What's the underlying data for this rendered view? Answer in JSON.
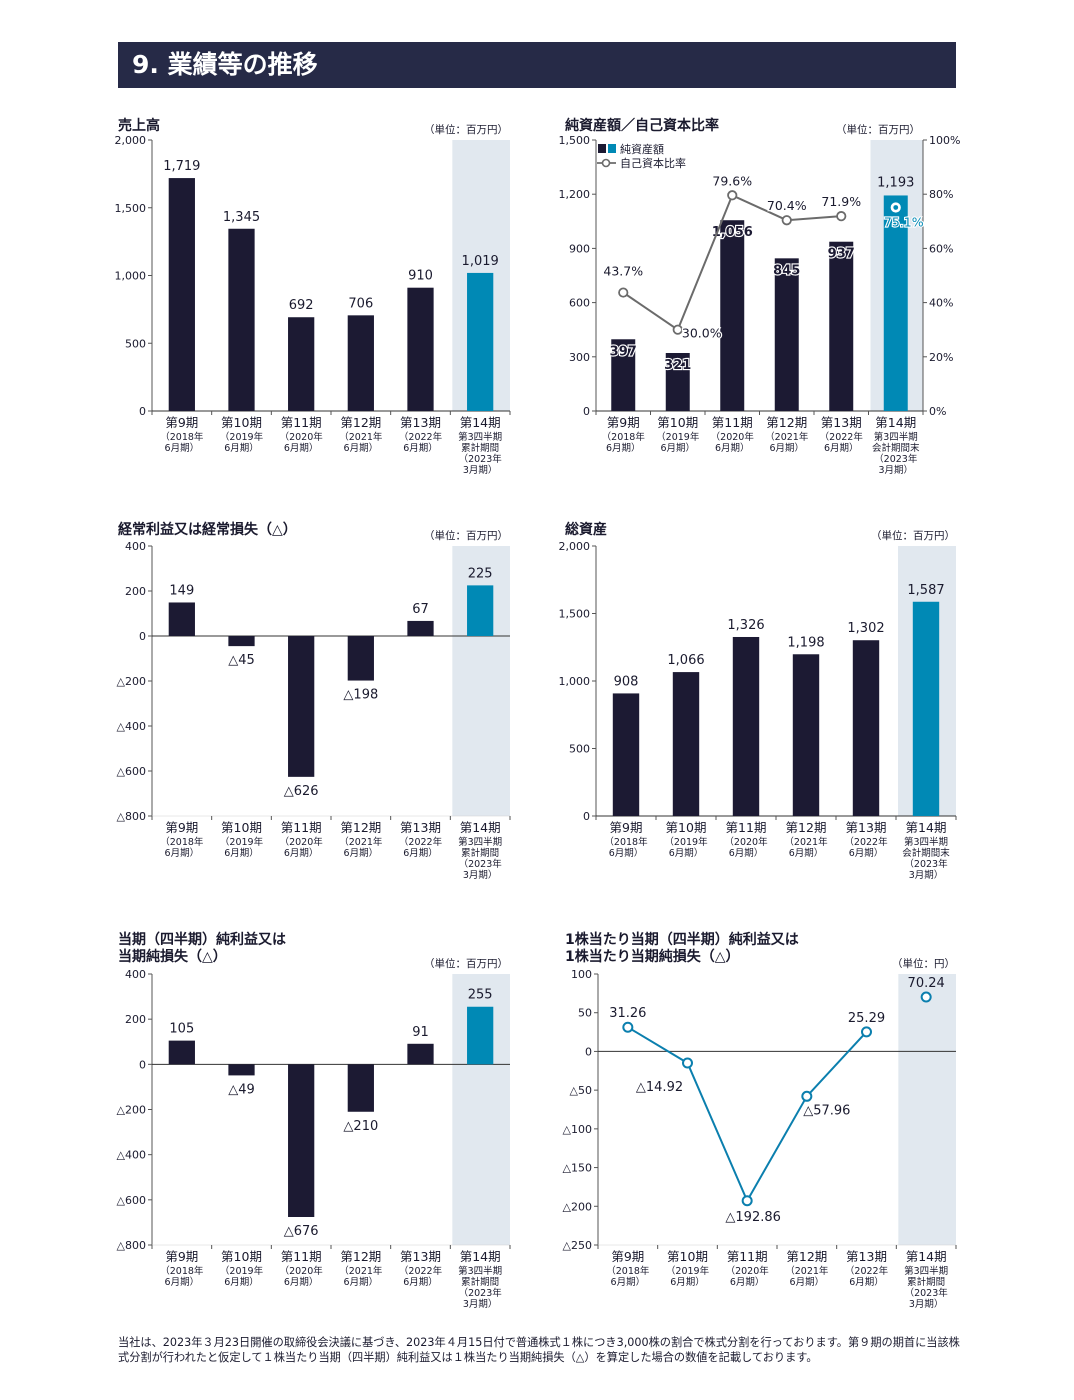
{
  "header": {
    "title": "9. 業績等の推移"
  },
  "colors": {
    "dark_bar": "#1c1a33",
    "accent_bar": "#0089b5",
    "highlight_band": "#e1e8ef",
    "line": "#6b6b6b",
    "eps_line": "#0b7fae",
    "axis": "#555555"
  },
  "chart_data": [
    {
      "id": "sales",
      "type": "bar",
      "title": "売上高",
      "unit": "（単位：百万円）",
      "categories": [
        "第9期",
        "第10期",
        "第11期",
        "第12期",
        "第13期",
        "第14期"
      ],
      "subtitles": [
        [
          "（2018年",
          "6月期）"
        ],
        [
          "（2019年",
          "6月期）"
        ],
        [
          "（2020年",
          "6月期）"
        ],
        [
          "（2021年",
          "6月期）"
        ],
        [
          "（2022年",
          "6月期）"
        ],
        [
          "第3四半期",
          "累計期間",
          "（2023年",
          "3月期）"
        ]
      ],
      "values": [
        1719,
        1345,
        692,
        706,
        910,
        1019
      ],
      "value_labels": [
        "1,719",
        "1,345",
        "692",
        "706",
        "910",
        "1,019"
      ],
      "ylim": [
        0,
        2000
      ],
      "yticks": [
        0,
        500,
        1000,
        1500,
        2000
      ],
      "ytick_labels": [
        "0",
        "500",
        "1,000",
        "1,500",
        "2,000"
      ],
      "highlight_index": 5
    },
    {
      "id": "net-assets",
      "type": "bar+line",
      "title": "純資産額／自己資本比率",
      "unit": "（単位：百万円）",
      "categories": [
        "第9期",
        "第10期",
        "第11期",
        "第12期",
        "第13期",
        "第14期"
      ],
      "subtitles": [
        [
          "（2018年",
          "6月期）"
        ],
        [
          "（2019年",
          "6月期）"
        ],
        [
          "（2020年",
          "6月期）"
        ],
        [
          "（2021年",
          "6月期）"
        ],
        [
          "（2022年",
          "6月期）"
        ],
        [
          "第3四半期",
          "会計期間末",
          "（2023年",
          "3月期）"
        ]
      ],
      "values": [
        397,
        321,
        1056,
        845,
        937,
        1193
      ],
      "value_labels": [
        "397",
        "321",
        "1,056",
        "845",
        "937",
        "1,193"
      ],
      "ylim": [
        0,
        1500
      ],
      "yticks": [
        0,
        300,
        600,
        900,
        1200,
        1500
      ],
      "ytick_labels": [
        "0",
        "300",
        "600",
        "900",
        "1,200",
        "1,500"
      ],
      "ratio_values": [
        43.7,
        30.0,
        79.6,
        70.4,
        71.9,
        75.1
      ],
      "ratio_labels": [
        "43.7%",
        "30.0%",
        "79.6%",
        "70.4%",
        "71.9%",
        "75.1%"
      ],
      "y2lim": [
        0,
        100
      ],
      "y2ticks": [
        0,
        20,
        40,
        60,
        80,
        100
      ],
      "y2tick_labels": [
        "0%",
        "20%",
        "40%",
        "60%",
        "80%",
        "100%"
      ],
      "legend": [
        "純資産額",
        "自己資本比率"
      ],
      "highlight_index": 5
    },
    {
      "id": "ordinary-income",
      "type": "bar",
      "title": "経常利益又は経常損失（△）",
      "unit": "（単位：百万円）",
      "categories": [
        "第9期",
        "第10期",
        "第11期",
        "第12期",
        "第13期",
        "第14期"
      ],
      "subtitles": [
        [
          "（2018年",
          "6月期）"
        ],
        [
          "（2019年",
          "6月期）"
        ],
        [
          "（2020年",
          "6月期）"
        ],
        [
          "（2021年",
          "6月期）"
        ],
        [
          "（2022年",
          "6月期）"
        ],
        [
          "第3四半期",
          "累計期間",
          "（2023年",
          "3月期）"
        ]
      ],
      "values": [
        149,
        -45,
        -626,
        -198,
        67,
        225
      ],
      "value_labels": [
        "149",
        "△45",
        "△626",
        "△198",
        "67",
        "225"
      ],
      "ylim": [
        -800,
        400
      ],
      "yticks": [
        -800,
        -600,
        -400,
        -200,
        0,
        200,
        400
      ],
      "ytick_labels": [
        "△800",
        "△600",
        "△400",
        "△200",
        "0",
        "200",
        "400"
      ],
      "highlight_index": 5
    },
    {
      "id": "total-assets",
      "type": "bar",
      "title": "総資産",
      "unit": "（単位：百万円）",
      "categories": [
        "第9期",
        "第10期",
        "第11期",
        "第12期",
        "第13期",
        "第14期"
      ],
      "subtitles": [
        [
          "（2018年",
          "6月期）"
        ],
        [
          "（2019年",
          "6月期）"
        ],
        [
          "（2020年",
          "6月期）"
        ],
        [
          "（2021年",
          "6月期）"
        ],
        [
          "（2022年",
          "6月期）"
        ],
        [
          "第3四半期",
          "会計期間末",
          "（2023年",
          "3月期）"
        ]
      ],
      "values": [
        908,
        1066,
        1326,
        1198,
        1302,
        1587
      ],
      "value_labels": [
        "908",
        "1,066",
        "1,326",
        "1,198",
        "1,302",
        "1,587"
      ],
      "ylim": [
        0,
        2000
      ],
      "yticks": [
        0,
        500,
        1000,
        1500,
        2000
      ],
      "ytick_labels": [
        "0",
        "500",
        "1,000",
        "1,500",
        "2,000"
      ],
      "highlight_index": 5
    },
    {
      "id": "net-income",
      "type": "bar",
      "title": [
        "当期（四半期）純利益又は",
        "当期純損失（△）"
      ],
      "unit": "（単位：百万円）",
      "categories": [
        "第9期",
        "第10期",
        "第11期",
        "第12期",
        "第13期",
        "第14期"
      ],
      "subtitles": [
        [
          "（2018年",
          "6月期）"
        ],
        [
          "（2019年",
          "6月期）"
        ],
        [
          "（2020年",
          "6月期）"
        ],
        [
          "（2021年",
          "6月期）"
        ],
        [
          "（2022年",
          "6月期）"
        ],
        [
          "第3四半期",
          "累計期間",
          "（2023年",
          "3月期）"
        ]
      ],
      "values": [
        105,
        -49,
        -676,
        -210,
        91,
        255
      ],
      "value_labels": [
        "105",
        "△49",
        "△676",
        "△210",
        "91",
        "255"
      ],
      "ylim": [
        -800,
        400
      ],
      "yticks": [
        -800,
        -600,
        -400,
        -200,
        0,
        200,
        400
      ],
      "ytick_labels": [
        "△800",
        "△600",
        "△400",
        "△200",
        "0",
        "200",
        "400"
      ],
      "highlight_index": 5
    },
    {
      "id": "eps",
      "type": "line",
      "title": [
        "1株当たり当期（四半期）純利益又は",
        "1株当たり当期純損失（△）"
      ],
      "unit": "（単位：円）",
      "categories": [
        "第9期",
        "第10期",
        "第11期",
        "第12期",
        "第13期",
        "第14期"
      ],
      "subtitles": [
        [
          "（2018年",
          "6月期）"
        ],
        [
          "（2019年",
          "6月期）"
        ],
        [
          "（2020年",
          "6月期）"
        ],
        [
          "（2021年",
          "6月期）"
        ],
        [
          "（2022年",
          "6月期）"
        ],
        [
          "第3四半期",
          "累計期間",
          "（2023年",
          "3月期）"
        ]
      ],
      "values": [
        31.26,
        -14.92,
        -192.86,
        -57.96,
        25.29,
        70.24
      ],
      "value_labels": [
        "31.26",
        "△14.92",
        "△192.86",
        "△57.96",
        "25.29",
        "70.24"
      ],
      "ylim": [
        -250,
        100
      ],
      "yticks": [
        -250,
        -200,
        -150,
        -100,
        -50,
        0,
        50,
        100
      ],
      "ytick_labels": [
        "△250",
        "△200",
        "△150",
        "△100",
        "△50",
        "0",
        "50",
        "100"
      ],
      "highlight_index": 5
    }
  ],
  "footnote": "当社は、2023年３月23日開催の取締役会決議に基づき、2023年４月15日付で普通株式１株につき3,000株の割合で株式分割を行っております。第９期の期首に当該株式分割が行われたと仮定して１株当たり当期（四半期）純利益又は１株当たり当期純損失（△）を算定した場合の数値を記載しております。"
}
